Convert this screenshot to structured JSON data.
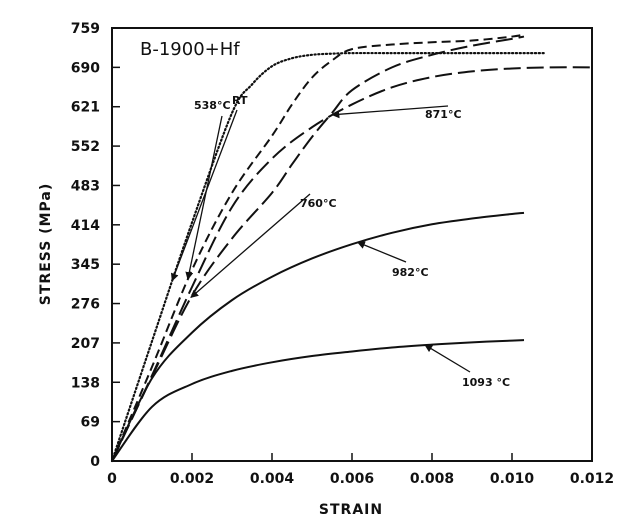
{
  "chart_data": {
    "type": "line",
    "title": "B-1900+Hf",
    "xlabel": "STRAIN",
    "ylabel": "STRESS (MPa)",
    "xlim": [
      0,
      0.012
    ],
    "ylim": [
      0,
      759
    ],
    "x_ticks": [
      "0",
      "0.002",
      "0.004",
      "0.006",
      "0.008",
      "0.010",
      "0.012"
    ],
    "y_ticks": [
      "0",
      "69",
      "138",
      "207",
      "276",
      "345",
      "414",
      "483",
      "552",
      "621",
      "690",
      "759"
    ],
    "grid": false,
    "legend": "none",
    "series": [
      {
        "name": "RT",
        "style": "dotted",
        "x": [
          0,
          0.001,
          0.002,
          0.003,
          0.0035,
          0.004,
          0.0045,
          0.005,
          0.0055,
          0.006,
          0.007,
          0.008,
          0.009,
          0.01,
          0.0108
        ],
        "y": [
          0,
          210,
          418,
          610,
          660,
          692,
          706,
          712,
          714,
          715,
          715,
          715,
          715,
          715,
          715
        ]
      },
      {
        "name": "538°C",
        "style": "dashed",
        "x": [
          0,
          0.001,
          0.002,
          0.003,
          0.004,
          0.0045,
          0.005,
          0.0055,
          0.006,
          0.007,
          0.008,
          0.009,
          0.01,
          0.0103
        ],
        "y": [
          0,
          165,
          335,
          470,
          570,
          625,
          672,
          702,
          722,
          730,
          734,
          737,
          744,
          748
        ]
      },
      {
        "name": "760°C",
        "style": "long-dash",
        "x": [
          0,
          0.001,
          0.002,
          0.003,
          0.004,
          0.0045,
          0.005,
          0.0055,
          0.006,
          0.007,
          0.008,
          0.009,
          0.01,
          0.0103
        ],
        "y": [
          0,
          148,
          290,
          390,
          470,
          520,
          568,
          610,
          650,
          690,
          712,
          728,
          740,
          744
        ]
      },
      {
        "name": "871°C",
        "style": "long-dash",
        "x": [
          0,
          0.001,
          0.002,
          0.003,
          0.004,
          0.005,
          0.006,
          0.007,
          0.008,
          0.009,
          0.01,
          0.011,
          0.012
        ],
        "y": [
          0,
          150,
          305,
          445,
          530,
          585,
          625,
          655,
          673,
          683,
          688,
          690,
          690
        ]
      },
      {
        "name": "982°C",
        "style": "solid",
        "x": [
          0,
          0.001,
          0.002,
          0.003,
          0.004,
          0.005,
          0.006,
          0.007,
          0.008,
          0.009,
          0.01,
          0.0103
        ],
        "y": [
          0,
          145,
          225,
          282,
          323,
          355,
          380,
          400,
          415,
          425,
          433,
          435
        ]
      },
      {
        "name": "1093°C",
        "style": "solid",
        "x": [
          0,
          0.001,
          0.002,
          0.003,
          0.004,
          0.005,
          0.006,
          0.007,
          0.008,
          0.009,
          0.01,
          0.0103
        ],
        "y": [
          0,
          95,
          135,
          158,
          173,
          184,
          192,
          199,
          204,
          208,
          211,
          212
        ]
      }
    ],
    "annotations": [
      {
        "text": "RT",
        "series": "RT"
      },
      {
        "text": "538°C",
        "series": "538°C"
      },
      {
        "text": "760°C",
        "series": "760°C"
      },
      {
        "text": "871°C",
        "series": "871°C"
      },
      {
        "text": "982°C",
        "series": "982°C"
      },
      {
        "text": "1093 °C",
        "series": "1093°C"
      }
    ]
  }
}
